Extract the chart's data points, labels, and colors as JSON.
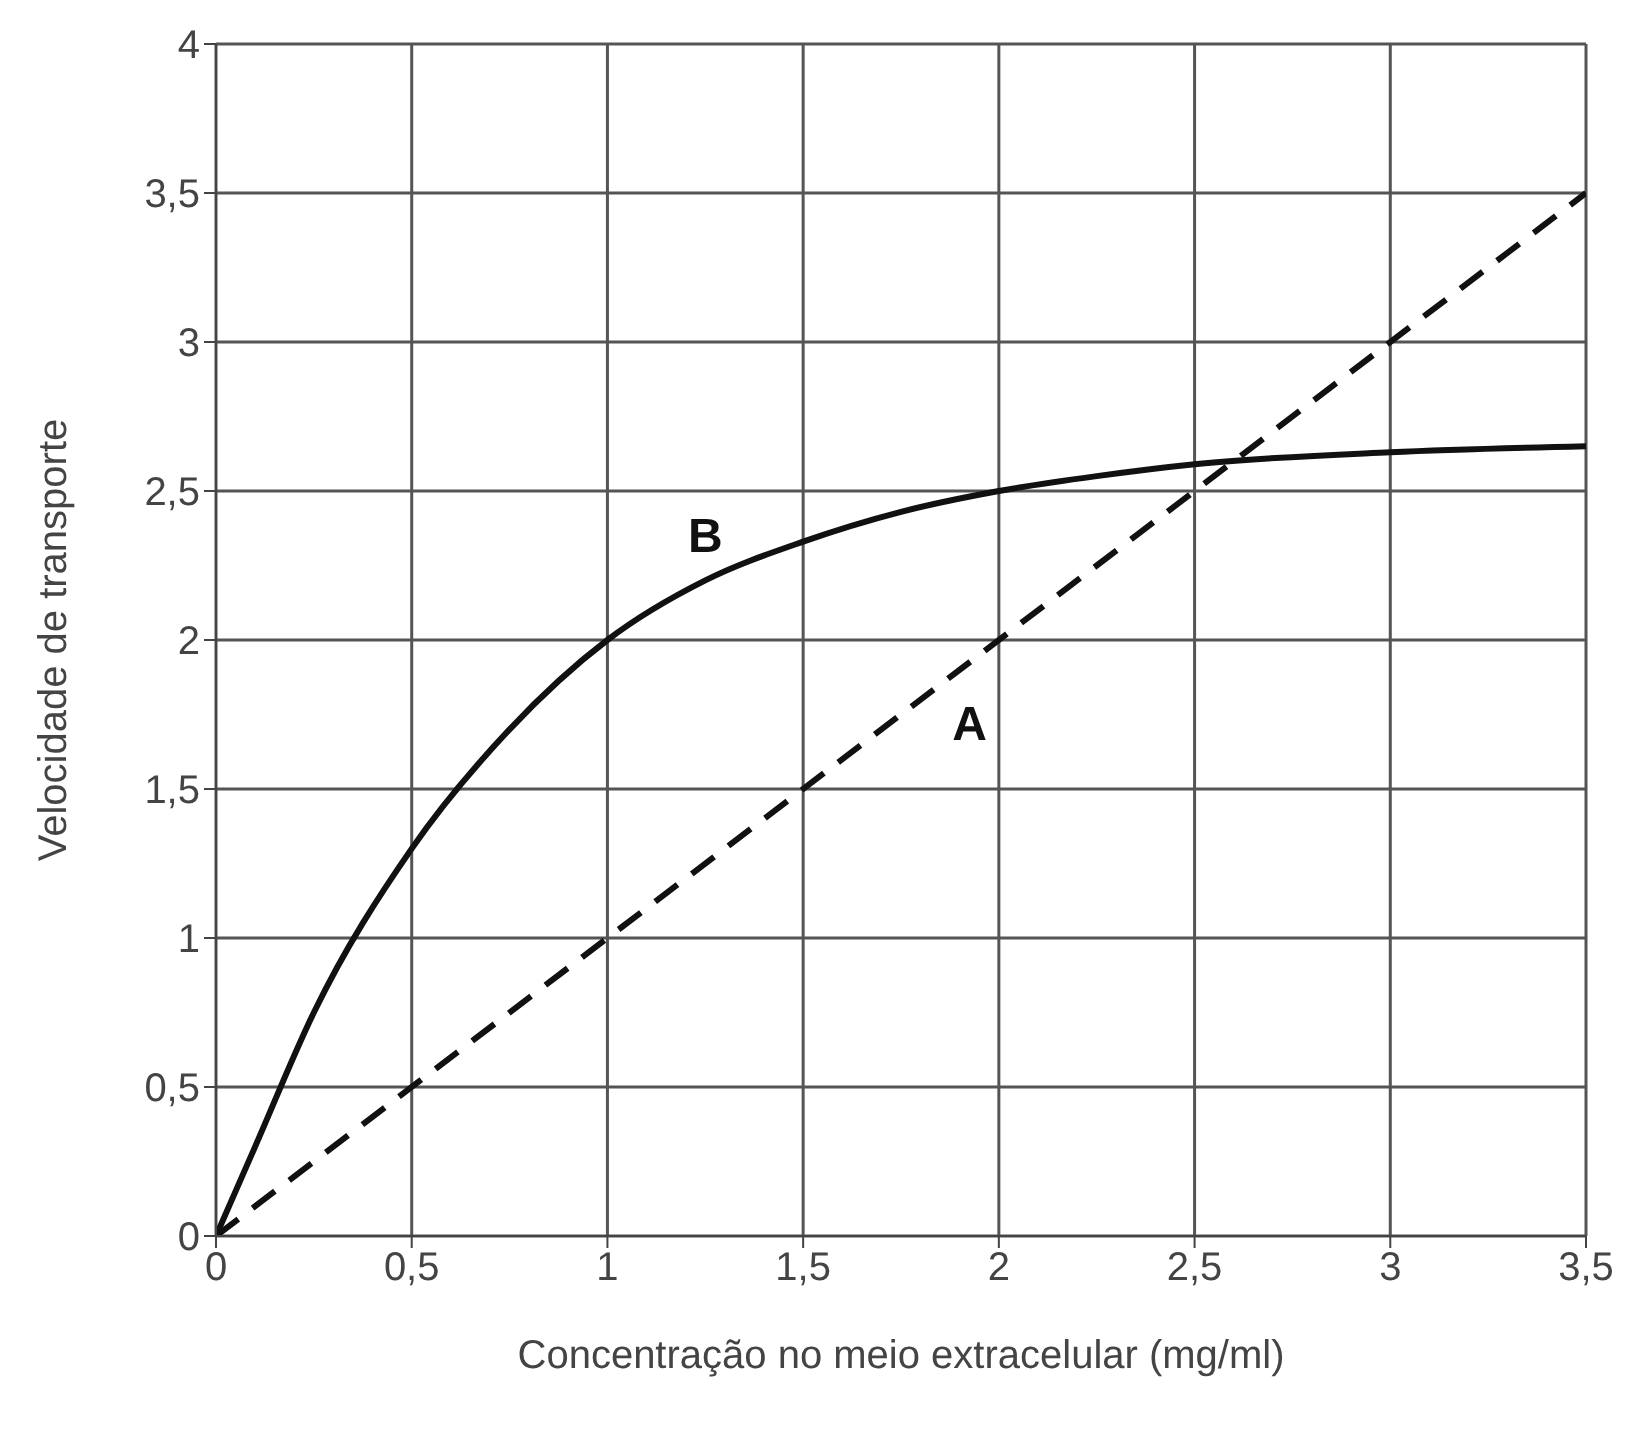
{
  "chart_data": {
    "type": "line",
    "xlabel": "Concentração no meio extracelular (mg/ml)",
    "ylabel": "Velocidade de transporte",
    "xlim": [
      0,
      3.5
    ],
    "ylim": [
      0,
      4
    ],
    "xticks": [
      0,
      {
        "value": 0.5,
        "label": "0,5"
      },
      1,
      {
        "value": 1.5,
        "label": "1,5"
      },
      2,
      {
        "value": 2.5,
        "label": "2,5"
      },
      3,
      {
        "value": 3.5,
        "label": "3,5"
      }
    ],
    "yticks": [
      0,
      {
        "value": 0.5,
        "label": "0,5"
      },
      1,
      {
        "value": 1.5,
        "label": "1,5"
      },
      2,
      {
        "value": 2.5,
        "label": "2,5"
      },
      3,
      {
        "value": 3.5,
        "label": "3,5"
      },
      4
    ],
    "grid": true,
    "marker": "none",
    "series": [
      {
        "name": "A",
        "color": "#111111",
        "line_style": "dashed",
        "x": [
          0,
          3.5
        ],
        "values": [
          0,
          3.5
        ]
      },
      {
        "name": "B",
        "color": "#111111",
        "line_style": "solid",
        "x": [
          0,
          0.1,
          0.25,
          0.5,
          0.75,
          1,
          1.25,
          1.5,
          1.75,
          2,
          2.25,
          2.5,
          3,
          3.5
        ],
        "values": [
          0,
          0.3,
          0.75,
          1.3,
          1.7,
          2.0,
          2.2,
          2.33,
          2.43,
          2.5,
          2.55,
          2.59,
          2.63,
          2.65
        ]
      }
    ]
  }
}
